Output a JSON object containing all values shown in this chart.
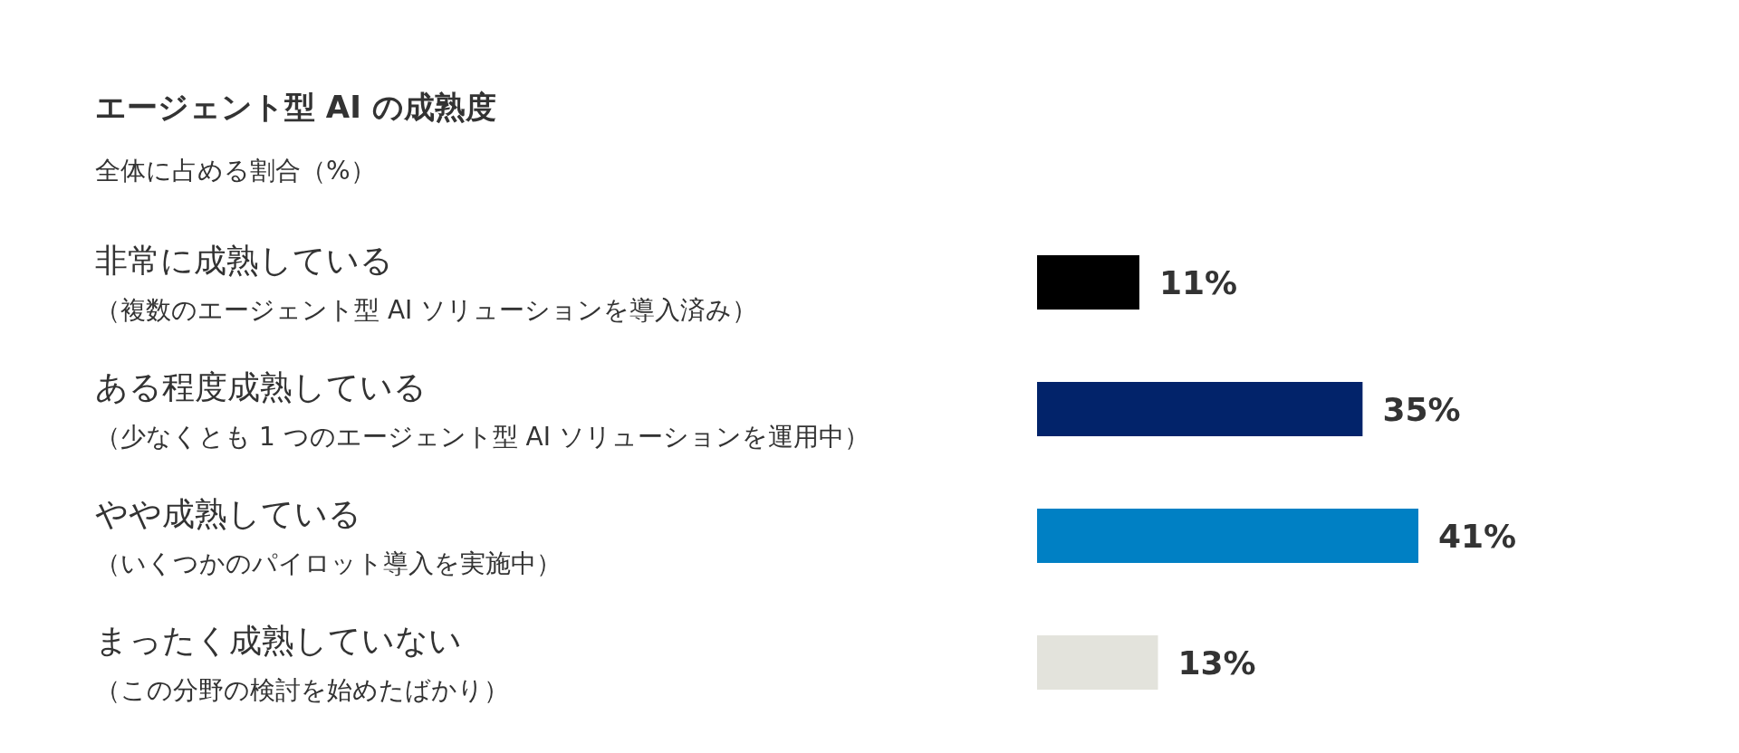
{
  "chart_data": {
    "type": "bar",
    "orientation": "horizontal",
    "title": "エージェント型 AI の成熟度",
    "subtitle": "全体に占める割合（%）",
    "categories": [
      "非常に成熟している（複数のエージェント型 AI ソリューションを導入済み）",
      "ある程度成熟している（少なくとも 1 つのエージェント型 AI ソリューションを運用中）",
      "やや成熟している（いくつかのパイロット導入を実施中）",
      "まったく成熟していない（この分野の検討を始めたばかり）"
    ],
    "values": [
      11,
      35,
      41,
      13
    ],
    "colors": [
      "#000000",
      "#02236a",
      "#0080c4",
      "#e3e3dc"
    ],
    "value_labels": [
      "11%",
      "35%",
      "41%",
      "13%"
    ],
    "grid": false,
    "legend": false
  }
}
